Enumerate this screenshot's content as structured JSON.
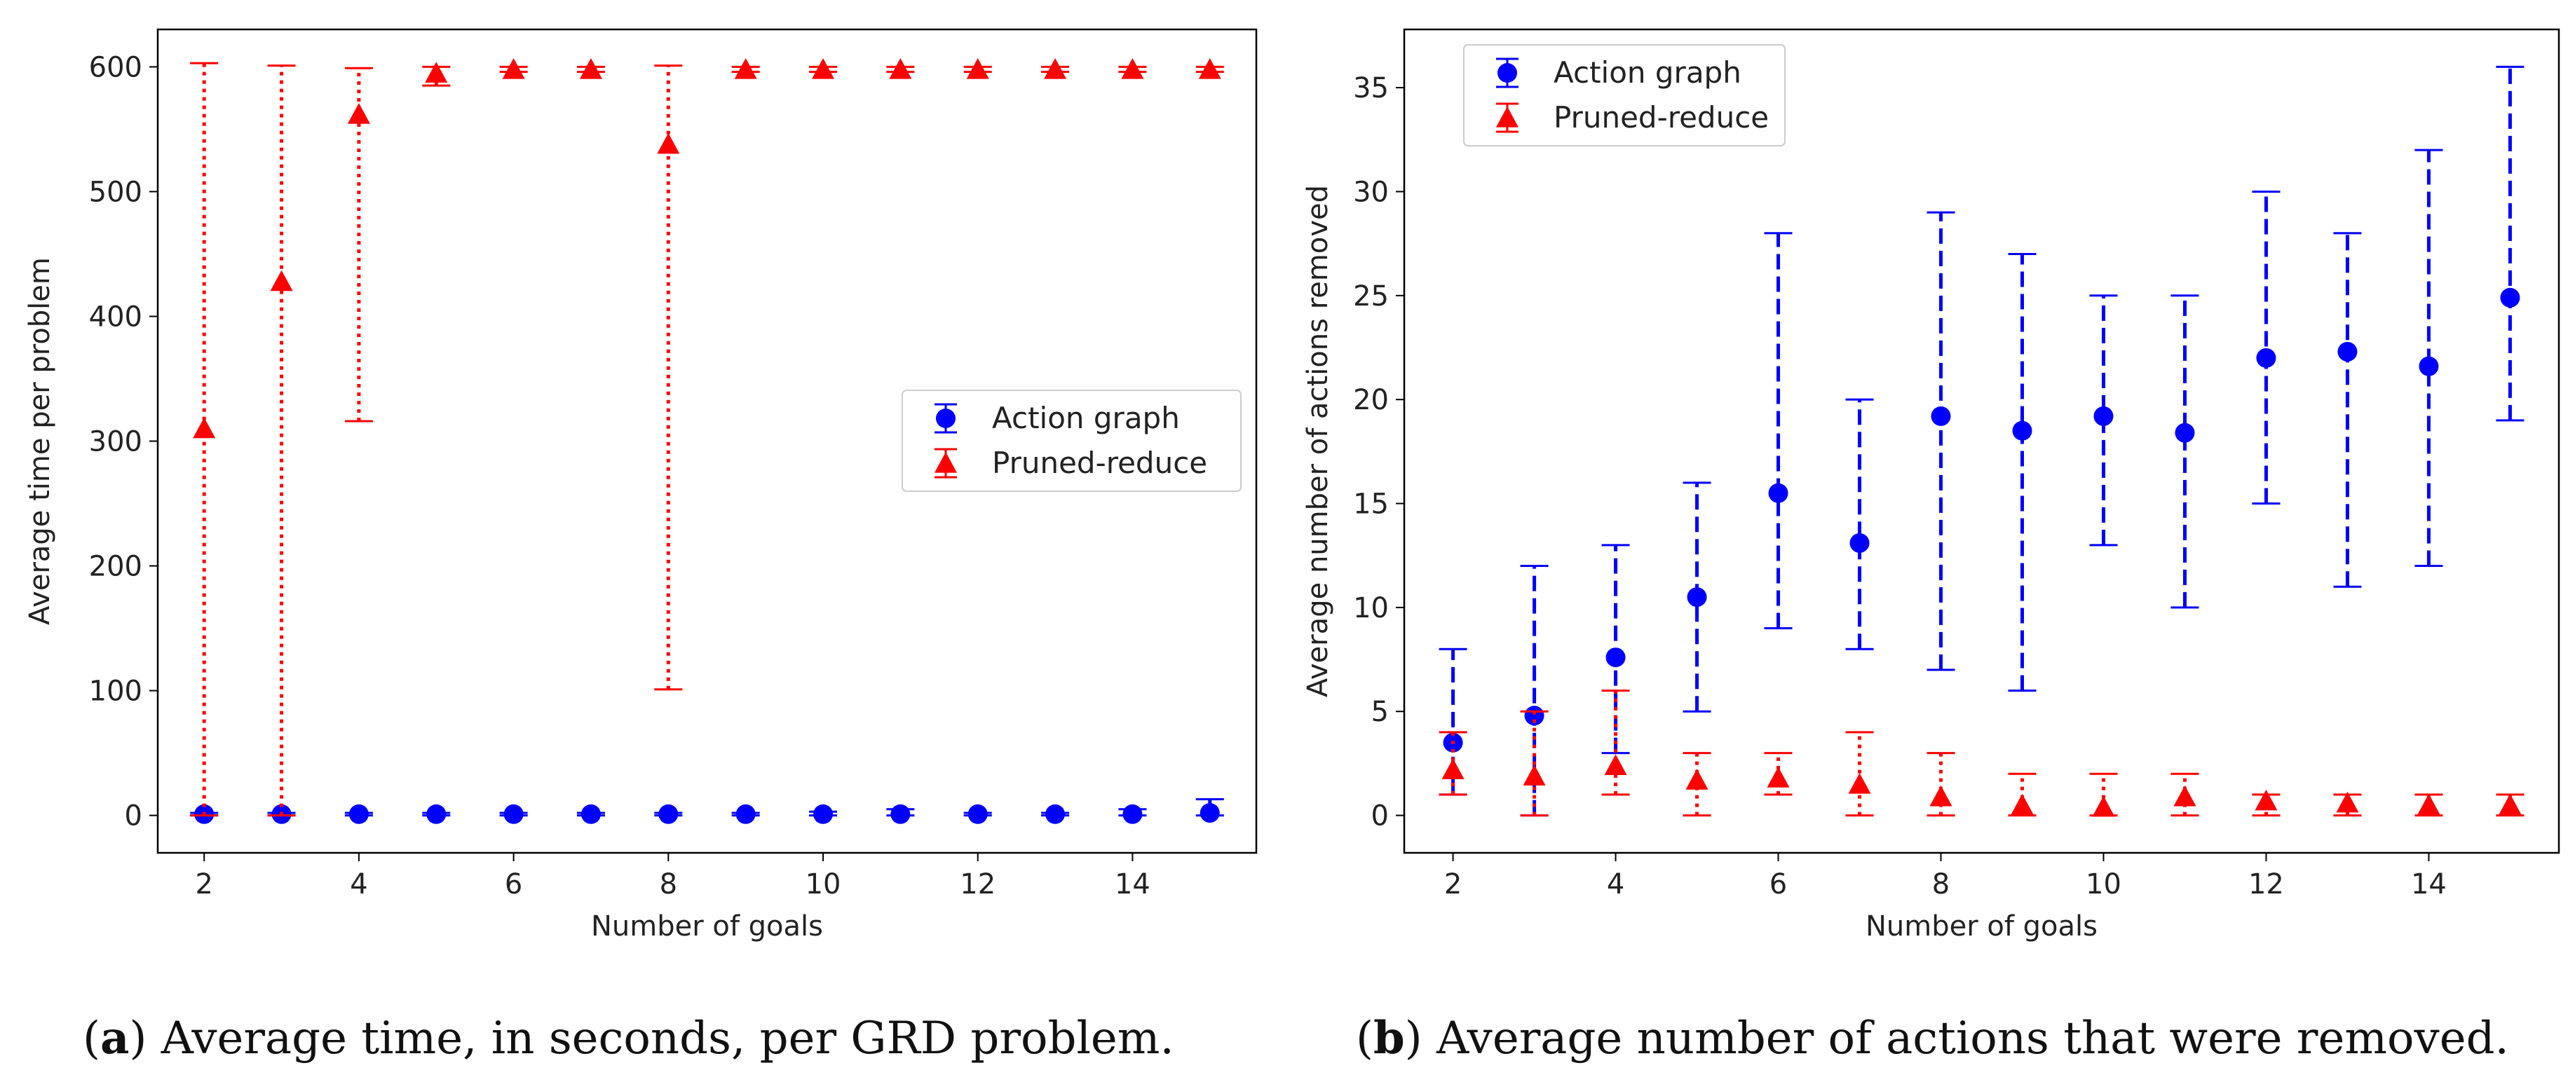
{
  "chart_data": [
    {
      "type": "scatter",
      "panel_label": "a",
      "caption": "Average time, in seconds, per GRD problem.",
      "xlabel": "Number of goals",
      "ylabel": "Average time per problem",
      "xlim": [
        1.4,
        15.6
      ],
      "ylim": [
        -30,
        630
      ],
      "xticks": [
        2,
        4,
        6,
        8,
        10,
        12,
        14
      ],
      "yticks": [
        0,
        100,
        200,
        300,
        400,
        500,
        600
      ],
      "legend_position": "center-right",
      "series": [
        {
          "name": "Action graph",
          "color": "#0000ff",
          "marker": "circle",
          "line_style": "dashed",
          "x": [
            2,
            3,
            4,
            5,
            6,
            7,
            8,
            9,
            10,
            11,
            12,
            13,
            14,
            15
          ],
          "y": [
            1,
            1,
            1,
            1,
            1,
            1,
            1,
            1,
            1,
            1,
            1,
            1,
            1,
            2
          ],
          "ymin": [
            0,
            0,
            0,
            0,
            0,
            0,
            0,
            0,
            0,
            0,
            0,
            0,
            0,
            0
          ],
          "ymax": [
            2,
            2,
            2,
            2,
            2,
            2,
            2,
            2,
            3,
            5,
            2,
            2,
            5,
            13
          ]
        },
        {
          "name": "Pruned-reduce",
          "color": "#ff0000",
          "marker": "triangle",
          "line_style": "dotted",
          "x": [
            2,
            3,
            4,
            5,
            6,
            7,
            8,
            9,
            10,
            11,
            12,
            13,
            14,
            15
          ],
          "y": [
            310,
            428,
            562,
            595,
            598,
            598,
            538,
            598,
            598,
            598,
            598,
            598,
            598,
            598
          ],
          "ymin": [
            0,
            0,
            316,
            585,
            596,
            596,
            101,
            596,
            596,
            596,
            596,
            596,
            596,
            596
          ],
          "ymax": [
            603,
            601,
            599,
            600,
            600,
            600,
            601,
            600,
            600,
            600,
            600,
            600,
            600,
            600
          ]
        }
      ]
    },
    {
      "type": "scatter",
      "panel_label": "b",
      "caption": "Average number of actions that were removed.",
      "xlabel": "Number of goals",
      "ylabel": "Average number of actions removed",
      "xlim": [
        1.4,
        15.6
      ],
      "ylim": [
        -1.8,
        37.8
      ],
      "xticks": [
        2,
        4,
        6,
        8,
        10,
        12,
        14
      ],
      "yticks": [
        0,
        5,
        10,
        15,
        20,
        25,
        30,
        35
      ],
      "legend_position": "top-left",
      "series": [
        {
          "name": "Action graph",
          "color": "#0000ff",
          "marker": "circle",
          "line_style": "dashed",
          "x": [
            2,
            3,
            4,
            5,
            6,
            7,
            8,
            9,
            10,
            11,
            12,
            13,
            14,
            15
          ],
          "y": [
            3.5,
            4.8,
            7.6,
            10.5,
            15.5,
            13.1,
            19.2,
            18.5,
            19.2,
            18.4,
            22.0,
            22.3,
            21.6,
            24.9
          ],
          "ymin": [
            1,
            0,
            3,
            5,
            9,
            8,
            7,
            6,
            13,
            10,
            15,
            11,
            12,
            19
          ],
          "ymax": [
            8,
            12,
            13,
            16,
            28,
            20,
            29,
            27,
            25,
            25,
            30,
            28,
            32,
            36
          ]
        },
        {
          "name": "Pruned-reduce",
          "color": "#ff0000",
          "marker": "triangle",
          "line_style": "dotted",
          "x": [
            2,
            3,
            4,
            5,
            6,
            7,
            8,
            9,
            10,
            11,
            12,
            13,
            14,
            15
          ],
          "y": [
            2.2,
            1.9,
            2.4,
            1.7,
            1.8,
            1.5,
            0.9,
            0.5,
            0.4,
            0.9,
            0.7,
            0.6,
            0.5,
            0.5
          ],
          "ymin": [
            1,
            0,
            1,
            0,
            1,
            0,
            0,
            0,
            0,
            0,
            0,
            0,
            0,
            0
          ],
          "ymax": [
            4,
            5,
            6,
            3,
            3,
            4,
            3,
            2,
            2,
            2,
            1,
            1,
            1,
            1
          ]
        }
      ]
    }
  ]
}
